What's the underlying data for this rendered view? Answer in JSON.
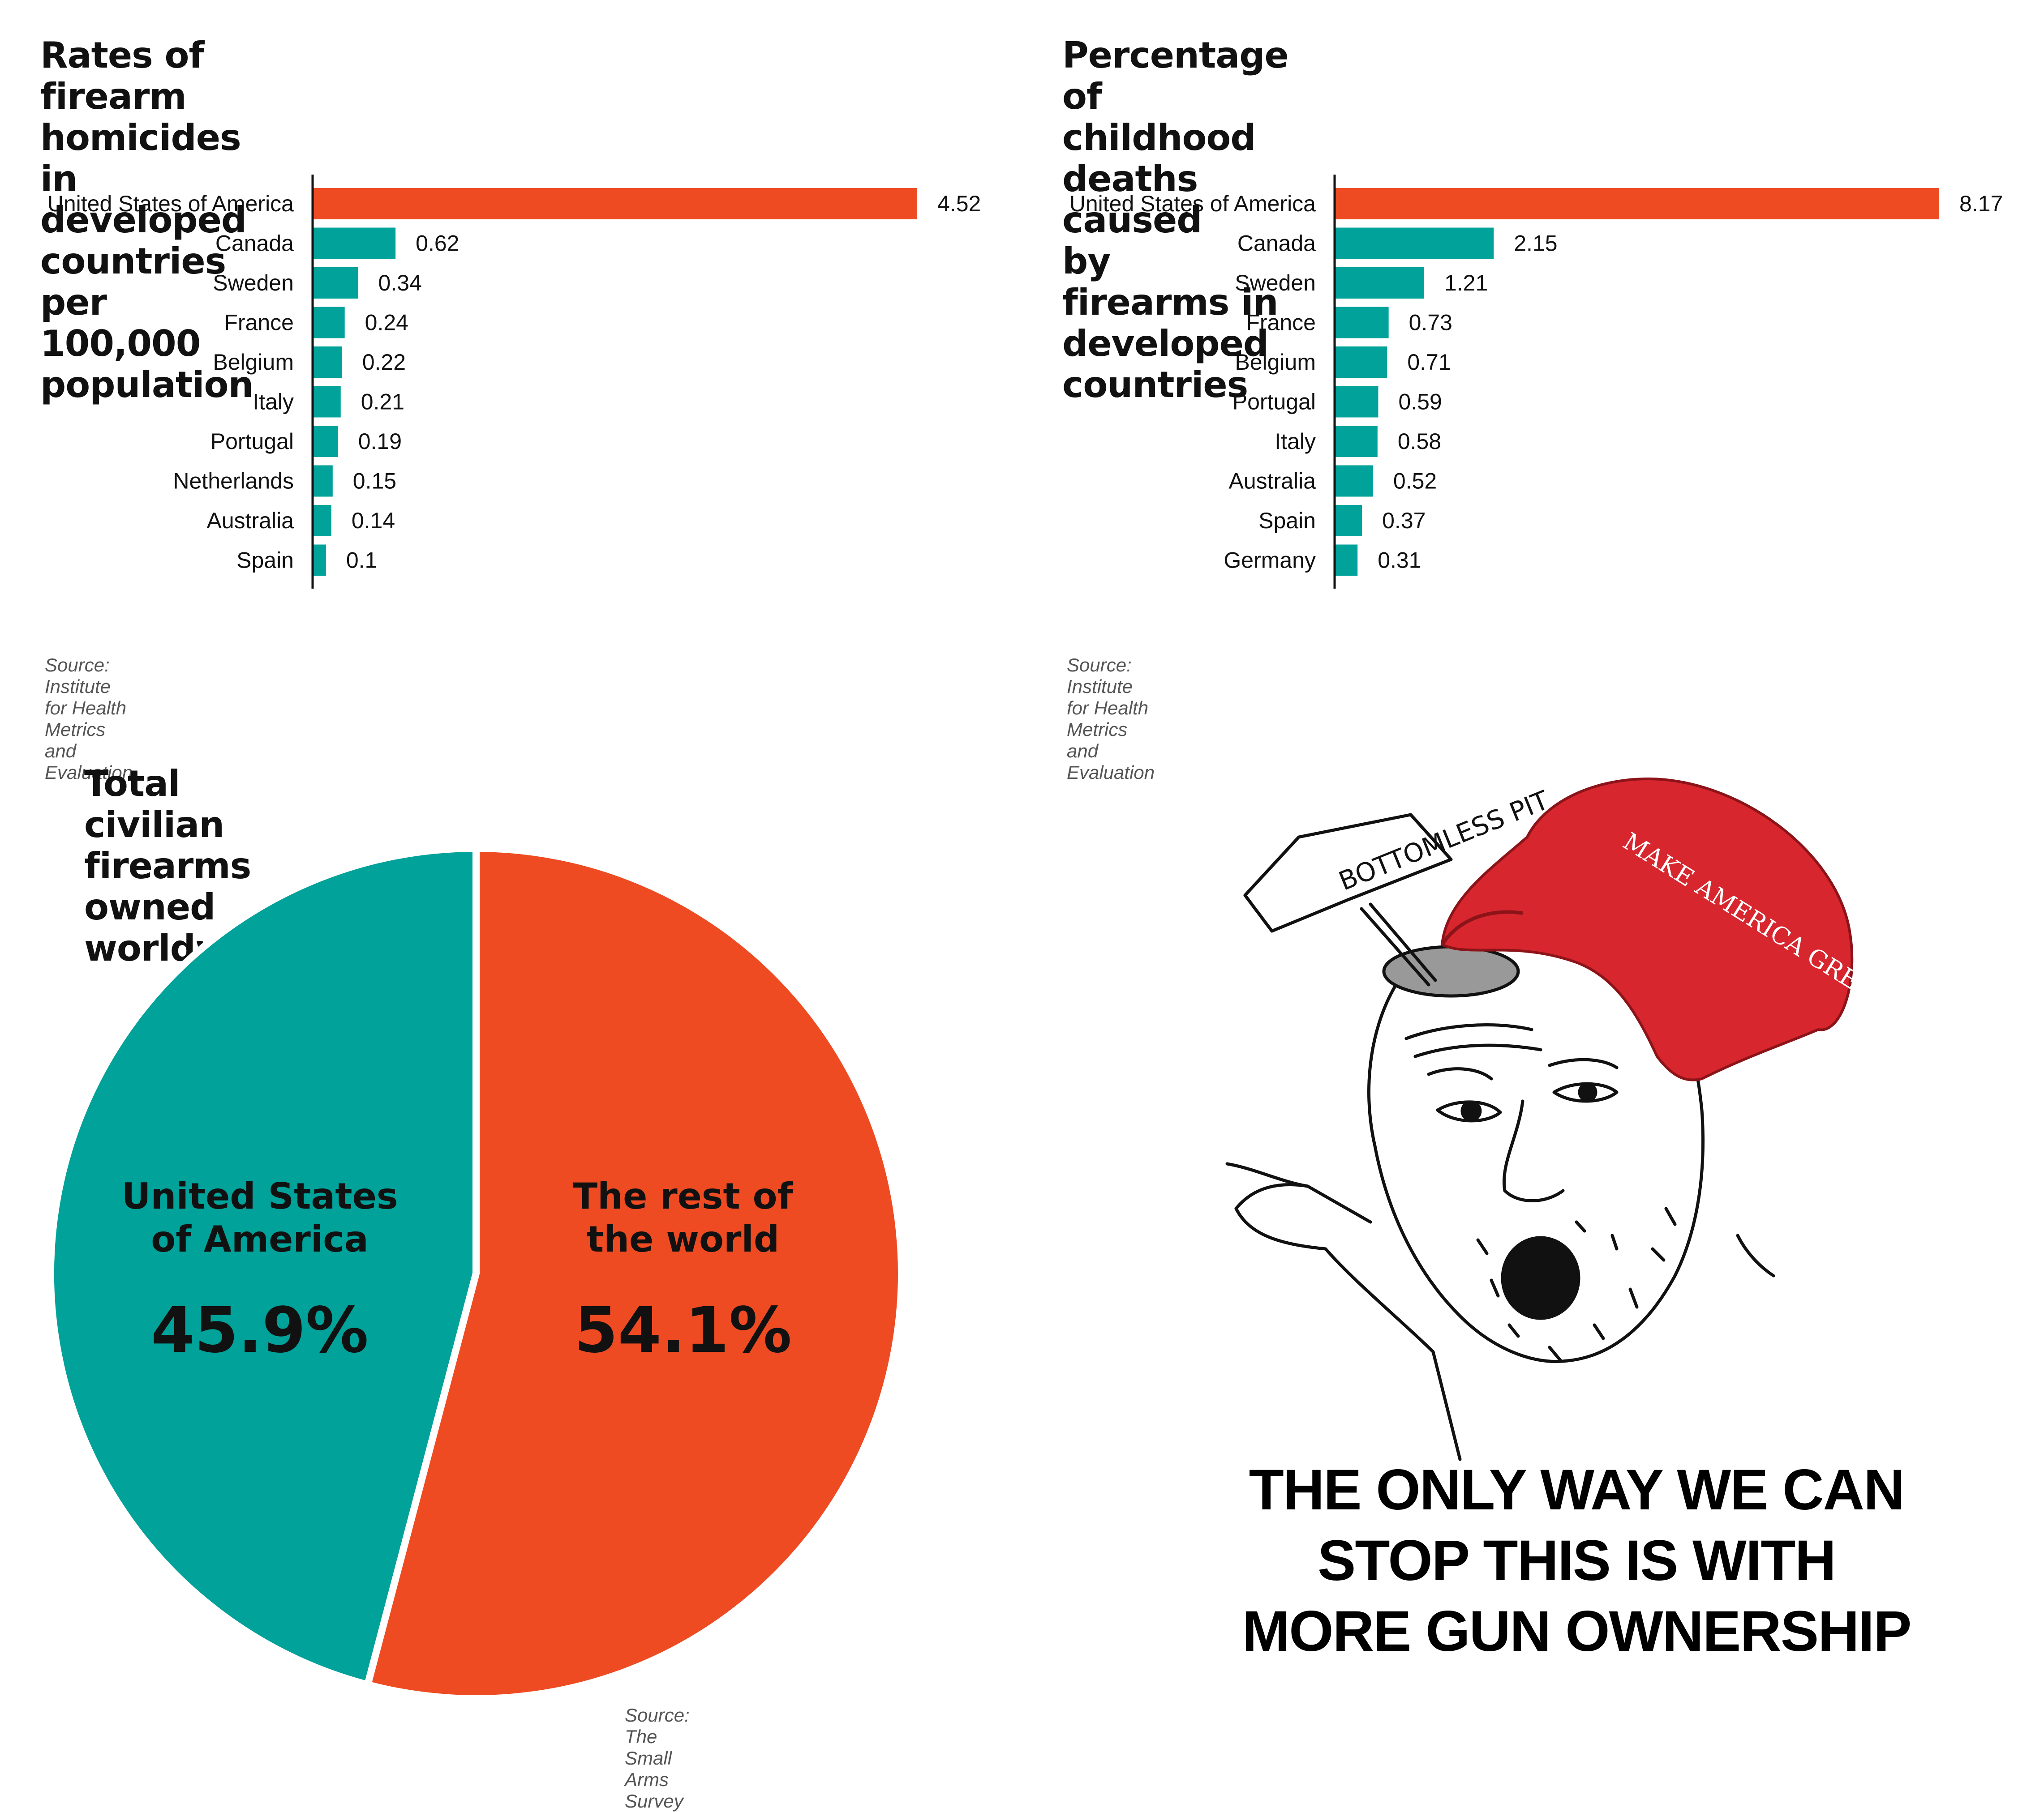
{
  "colors": {
    "highlight": "#ee4b23",
    "bar": "#00a29a",
    "text": "#111111",
    "source": "#555555"
  },
  "charts": [
    {
      "title": "Rates of firearm homicides in developed\ncountries per 100,000 population",
      "source": "Source: Institute for Health Metrics and Evaluation"
    },
    {
      "title": "Percentage of childhood deaths caused\nby firearms in developed countries",
      "source": "Source: Institute for Health Metrics and Evaluation"
    },
    {
      "title": "Total civilian firearms owned worldwide",
      "source": "Source: The Small Arms Survey"
    }
  ],
  "chart_data": [
    {
      "type": "bar",
      "orientation": "horizontal",
      "title": "Rates of firearm homicides in developed countries per 100,000 population",
      "categories": [
        "United States of America",
        "Canada",
        "Sweden",
        "France",
        "Belgium",
        "Italy",
        "Portugal",
        "Netherlands",
        "Australia",
        "Spain"
      ],
      "values": [
        4.52,
        0.62,
        0.34,
        0.24,
        0.22,
        0.21,
        0.19,
        0.15,
        0.14,
        0.1
      ],
      "value_labels": [
        "4.52",
        "0.62",
        "0.34",
        "0.24",
        "0.22",
        "0.21",
        "0.19",
        "0.15",
        "0.14",
        "0.1"
      ],
      "highlight_index": 0,
      "xlim": [
        0,
        4.52
      ],
      "grid": false
    },
    {
      "type": "bar",
      "orientation": "horizontal",
      "title": "Percentage of childhood deaths caused by firearms in developed countries",
      "categories": [
        "United States of America",
        "Canada",
        "Sweden",
        "France",
        "Belgium",
        "Portugal",
        "Italy",
        "Australia",
        "Spain",
        "Germany"
      ],
      "values": [
        8.17,
        2.15,
        1.21,
        0.73,
        0.71,
        0.59,
        0.58,
        0.52,
        0.37,
        0.31
      ],
      "value_labels": [
        "8.17",
        "2.15",
        "1.21",
        "0.73",
        "0.71",
        "0.59",
        "0.58",
        "0.52",
        "0.37",
        "0.31"
      ],
      "highlight_index": 0,
      "xlim": [
        0,
        8.17
      ],
      "grid": false
    },
    {
      "type": "pie",
      "title": "Total civilian firearms owned worldwide",
      "slices": [
        {
          "label": "United States\nof America",
          "value": 45.9,
          "value_label": "45.9%",
          "color": "#00a29a"
        },
        {
          "label": "The rest of\nthe world",
          "value": 54.1,
          "value_label": "54.1%",
          "color": "#ee4b23"
        }
      ]
    }
  ],
  "meme": {
    "sign_text": "BOTTOMLESS PIT",
    "hat_text": "MAKE AMERICA GREAT AGAIN",
    "caption": "THE ONLY WAY WE CAN\nSTOP THIS IS WITH\nMORE GUN OWNERSHIP"
  }
}
